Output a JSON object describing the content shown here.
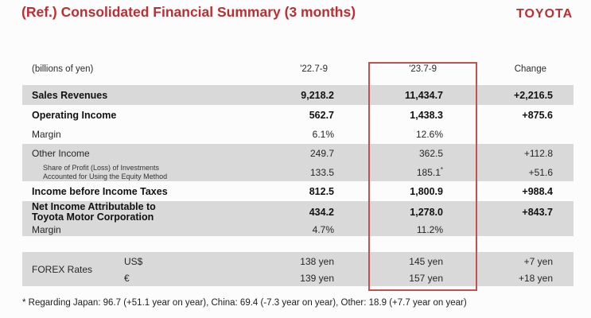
{
  "title": "(Ref.) Consolidated Financial Summary (3 months)",
  "logo": "TOYOTA",
  "colors": {
    "accent_red": "#bf2d31",
    "highlight_box_red": "#c4524c",
    "row_band_gray": "#d9d9d9"
  },
  "table": {
    "unit_label": "(billions of yen)",
    "columns": {
      "prev": "'22.7-9",
      "curr": "'23.7-9",
      "change": "Change"
    },
    "rows": [
      {
        "label": "Sales Revenues",
        "prev": "9,218.2",
        "curr": "11,434.7",
        "change": "+2,216.5"
      },
      {
        "label": "Operating Income",
        "prev": "562.7",
        "curr": "1,438.3",
        "change": "+875.6"
      },
      {
        "label": "Margin",
        "prev": "6.1%",
        "curr": "12.6%"
      },
      {
        "label": "Other Income",
        "prev": "249.7",
        "curr": "362.5",
        "change": "+112.8"
      },
      {
        "label_line1": "Share of Profit (Loss) of Investments",
        "label_line2": "Accounted for Using the Equity Method",
        "prev": "133.5",
        "curr": "185.1",
        "curr_note": "*",
        "change": "+51.6"
      },
      {
        "label": "Income before Income Taxes",
        "prev": "812.5",
        "curr": "1,800.9",
        "change": "+988.4"
      },
      {
        "label_line1": "Net Income Attributable to",
        "label_line2": "Toyota Motor Corporation",
        "prev": "434.2",
        "curr": "1,278.0",
        "change": "+843.7"
      },
      {
        "label": "Margin",
        "prev": "4.7%",
        "curr": "11.2%"
      }
    ],
    "forex": {
      "label": "FOREX Rates",
      "rows": [
        {
          "currency": "US$",
          "prev": "138 yen",
          "curr": "145 yen",
          "change": "+7 yen"
        },
        {
          "currency": "€",
          "prev": "139 yen",
          "curr": "157 yen",
          "change": "+18 yen"
        }
      ]
    }
  },
  "footnote": "* Regarding Japan: 96.7 (+51.1 year on year), China: 69.4 (-7.3 year on year), Other: 18.9 (+7.7 year on year)"
}
